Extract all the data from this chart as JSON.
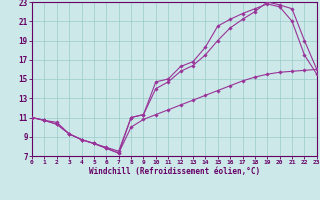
{
  "bg_color": "#cce8e8",
  "grid_color": "#99cccc",
  "line_color": "#993399",
  "axis_color": "#660066",
  "xlabel": "Windchill (Refroidissement éolien,°C)",
  "xlim": [
    0,
    23
  ],
  "ylim": [
    7,
    23
  ],
  "xticks": [
    0,
    1,
    2,
    3,
    4,
    5,
    6,
    7,
    8,
    9,
    10,
    11,
    12,
    13,
    14,
    15,
    16,
    17,
    18,
    19,
    20,
    21,
    22,
    23
  ],
  "yticks": [
    7,
    9,
    11,
    13,
    15,
    17,
    19,
    21,
    23
  ],
  "curve1_x": [
    0,
    1,
    2,
    3,
    4,
    5,
    6,
    7,
    8,
    9,
    10,
    11,
    12,
    13,
    14,
    15,
    16,
    17,
    18,
    19,
    20,
    21,
    22,
    23
  ],
  "curve1_y": [
    11,
    10.7,
    10.5,
    9.3,
    8.7,
    8.3,
    7.9,
    7.5,
    11.0,
    11.3,
    14.7,
    15.0,
    16.3,
    16.8,
    18.3,
    20.5,
    21.2,
    21.8,
    22.3,
    22.8,
    22.5,
    21.0,
    17.5,
    15.5
  ],
  "curve2_x": [
    0,
    1,
    2,
    3,
    4,
    5,
    6,
    7,
    8,
    9,
    10,
    11,
    12,
    13,
    14,
    15,
    16,
    17,
    18,
    19,
    20,
    21,
    22,
    23
  ],
  "curve2_y": [
    11,
    10.7,
    10.3,
    9.3,
    8.7,
    8.3,
    7.8,
    7.3,
    11.0,
    11.3,
    14.0,
    14.7,
    15.8,
    16.4,
    17.5,
    19.0,
    20.3,
    21.2,
    22.0,
    23.0,
    22.7,
    22.3,
    19.0,
    16.0
  ],
  "curve3_x": [
    0,
    1,
    2,
    3,
    4,
    5,
    6,
    7,
    8,
    9,
    10,
    11,
    12,
    13,
    14,
    15,
    16,
    17,
    18,
    19,
    20,
    21,
    22,
    23
  ],
  "curve3_y": [
    11,
    10.7,
    10.3,
    9.3,
    8.7,
    8.3,
    7.8,
    7.3,
    10.0,
    10.8,
    11.3,
    11.8,
    12.3,
    12.8,
    13.3,
    13.8,
    14.3,
    14.8,
    15.2,
    15.5,
    15.7,
    15.8,
    15.9,
    16.0
  ]
}
